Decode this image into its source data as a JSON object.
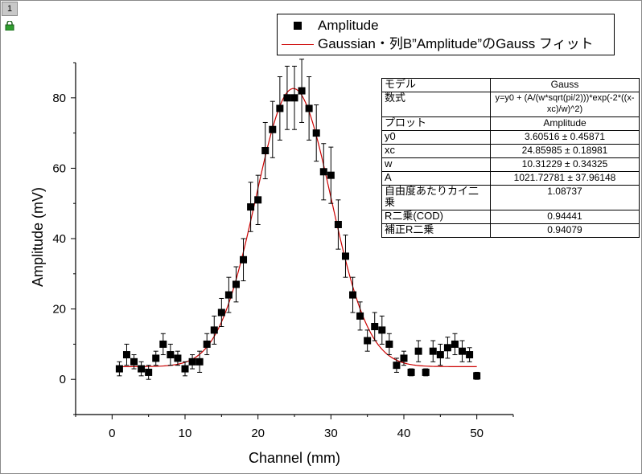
{
  "window": {
    "layer_tab": "1"
  },
  "legend": {
    "scatter_label": "Amplitude",
    "fit_label": "Gaussian・列B”Amplitude”のGauss フィット"
  },
  "fit_table": [
    {
      "key": "モデル",
      "value": "Gauss"
    },
    {
      "key": "数式",
      "value": "y=y0 + (A/(w*sqrt(pi/2)))*exp(-2*((x-xc)/w)^2)"
    },
    {
      "key": "プロット",
      "value": "Amplitude"
    },
    {
      "key": "y0",
      "value": "3.60516 ± 0.45871"
    },
    {
      "key": "xc",
      "value": "24.85985 ± 0.18981"
    },
    {
      "key": "w",
      "value": "10.31229 ± 0.34325"
    },
    {
      "key": "A",
      "value": "1021.72781 ± 37.96148"
    },
    {
      "key": "自由度あたりカイ二乗",
      "value": "1.08737"
    },
    {
      "key": "R二乗(COD)",
      "value": "0.94441"
    },
    {
      "key": "補正R二乗",
      "value": "0.94079"
    }
  ],
  "colors": {
    "fit_line": "#cc0000",
    "points": "#000000"
  },
  "chart_data": {
    "type": "scatter",
    "xlabel": "Channel (mm)",
    "ylabel": "Amplitude (mV)",
    "xlim": [
      -5,
      55
    ],
    "ylim": [
      -10,
      90
    ],
    "xticks": [
      0,
      10,
      20,
      30,
      40,
      50
    ],
    "yticks": [
      0,
      20,
      40,
      60,
      80
    ],
    "series": [
      {
        "name": "Amplitude",
        "type": "scatter",
        "x": [
          1,
          2,
          3,
          4,
          5,
          6,
          7,
          8,
          9,
          10,
          11,
          12,
          13,
          14,
          15,
          16,
          17,
          18,
          19,
          20,
          21,
          22,
          23,
          24,
          25,
          26,
          27,
          28,
          29,
          30,
          31,
          32,
          33,
          34,
          35,
          36,
          37,
          38,
          39,
          40,
          41,
          42,
          43,
          44,
          45,
          46,
          47,
          48,
          49,
          50
        ],
        "y": [
          3,
          7,
          5,
          3,
          2,
          6,
          10,
          7,
          6,
          3,
          5,
          5,
          10,
          14,
          19,
          24,
          27,
          34,
          49,
          51,
          65,
          71,
          77,
          80,
          80,
          82,
          77,
          70,
          59,
          58,
          44,
          35,
          24,
          18,
          11,
          15,
          14,
          10,
          4,
          6,
          2,
          8,
          2,
          8,
          7,
          9,
          10,
          8,
          7,
          1
        ],
        "error": [
          2,
          3,
          2,
          2,
          2,
          2,
          3,
          3,
          2,
          2,
          2,
          3,
          3,
          4,
          4,
          5,
          5,
          6,
          7,
          7,
          8,
          8,
          9,
          9,
          9,
          9,
          9,
          8,
          8,
          8,
          7,
          6,
          5,
          4,
          3,
          4,
          4,
          3,
          2,
          2,
          1,
          3,
          1,
          3,
          3,
          3,
          3,
          3,
          2,
          1
        ]
      },
      {
        "name": "Gaussian・列B”Amplitude”のGauss フィット",
        "type": "line",
        "model": {
          "y0": 3.60516,
          "xc": 24.85985,
          "w": 10.31229,
          "A": 1021.72781
        },
        "x_range": [
          1,
          50
        ]
      }
    ]
  }
}
